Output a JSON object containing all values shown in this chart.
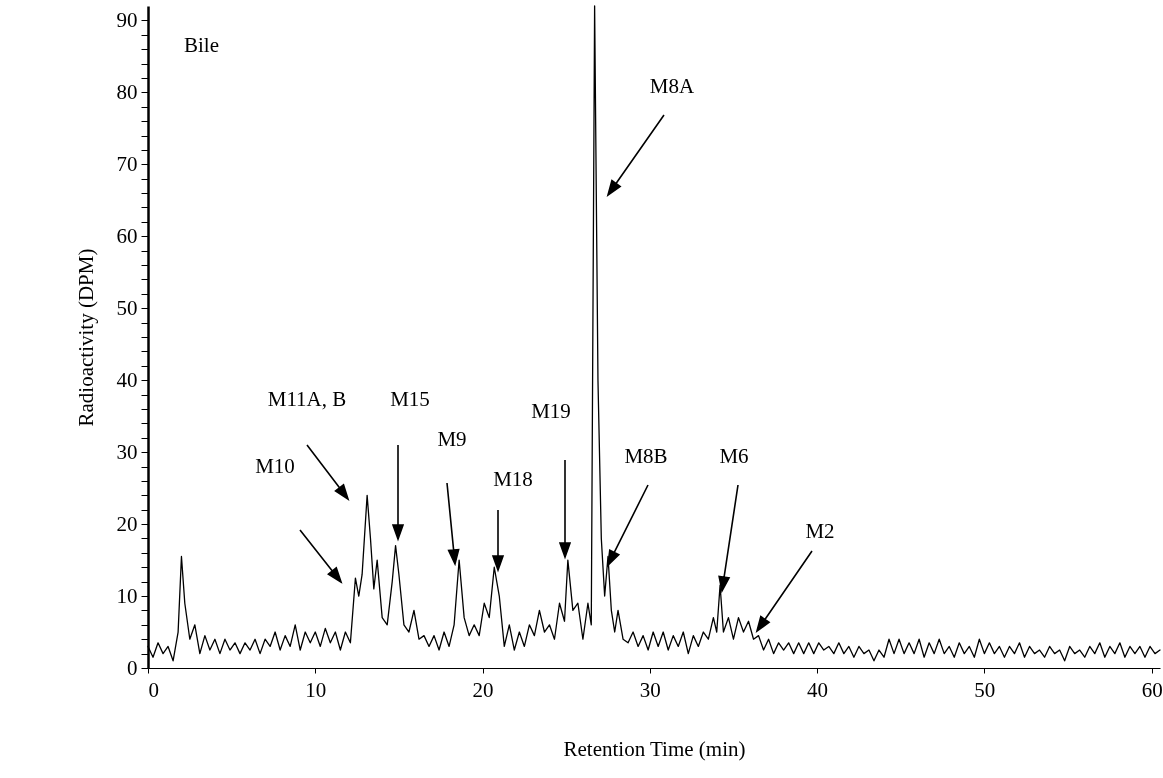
{
  "chart_data": {
    "type": "line",
    "xlabel": "Retention Time (min)",
    "ylabel": "Radioactivity (DPM)",
    "color": "#000000",
    "grid": false,
    "xlim": [
      0,
      60.5
    ],
    "xticks": [
      0,
      10,
      20,
      30,
      40,
      50,
      60
    ],
    "ylim": [
      0,
      92
    ],
    "yticks": [
      0,
      {
        "value": 2,
        "label": null
      },
      {
        "value": 4,
        "label": null
      },
      {
        "value": 6,
        "label": null
      },
      {
        "value": 8,
        "label": null
      },
      10,
      {
        "value": 12,
        "label": null
      },
      {
        "value": 14,
        "label": null
      },
      {
        "value": 16,
        "label": null
      },
      {
        "value": 18,
        "label": null
      },
      20,
      {
        "value": 22,
        "label": null
      },
      {
        "value": 24,
        "label": null
      },
      {
        "value": 26,
        "label": null
      },
      {
        "value": 28,
        "label": null
      },
      30,
      {
        "value": 32,
        "label": null
      },
      {
        "value": 34,
        "label": null
      },
      {
        "value": 36,
        "label": null
      },
      {
        "value": 38,
        "label": null
      },
      40,
      {
        "value": 42,
        "label": null
      },
      {
        "value": 44,
        "label": null
      },
      {
        "value": 46,
        "label": null
      },
      {
        "value": 48,
        "label": null
      },
      50,
      {
        "value": 52,
        "label": null
      },
      {
        "value": 54,
        "label": null
      },
      {
        "value": 56,
        "label": null
      },
      {
        "value": 58,
        "label": null
      },
      60,
      {
        "value": 62,
        "label": null
      },
      {
        "value": 64,
        "label": null
      },
      {
        "value": 66,
        "label": null
      },
      {
        "value": 68,
        "label": null
      },
      70,
      {
        "value": 72,
        "label": null
      },
      {
        "value": 74,
        "label": null
      },
      {
        "value": 76,
        "label": null
      },
      {
        "value": 78,
        "label": null
      },
      80,
      {
        "value": 82,
        "label": null
      },
      {
        "value": 84,
        "label": null
      },
      {
        "value": 86,
        "label": null
      },
      {
        "value": 88,
        "label": null
      },
      90
    ],
    "x": [
      0,
      0.3,
      0.6,
      0.9,
      1.2,
      1.5,
      1.8,
      2.0,
      2.2,
      2.5,
      2.8,
      3.1,
      3.4,
      3.7,
      4.0,
      4.3,
      4.6,
      4.9,
      5.2,
      5.5,
      5.8,
      6.1,
      6.4,
      6.7,
      7.0,
      7.3,
      7.6,
      7.9,
      8.2,
      8.5,
      8.8,
      9.1,
      9.4,
      9.7,
      10.0,
      10.3,
      10.6,
      10.9,
      11.2,
      11.5,
      11.8,
      12.1,
      12.4,
      12.6,
      12.8,
      13.1,
      13.3,
      13.5,
      13.7,
      14.0,
      14.3,
      14.6,
      14.8,
      15.0,
      15.3,
      15.6,
      15.9,
      16.2,
      16.5,
      16.8,
      17.1,
      17.4,
      17.7,
      18.0,
      18.3,
      18.6,
      18.9,
      19.2,
      19.5,
      19.8,
      20.1,
      20.4,
      20.7,
      21.0,
      21.3,
      21.6,
      21.9,
      22.2,
      22.5,
      22.8,
      23.1,
      23.4,
      23.7,
      24.0,
      24.3,
      24.6,
      24.9,
      25.1,
      25.4,
      25.7,
      26.0,
      26.3,
      26.5,
      26.7,
      26.9,
      27.1,
      27.3,
      27.5,
      27.7,
      27.9,
      28.1,
      28.4,
      28.7,
      29.0,
      29.3,
      29.6,
      29.9,
      30.2,
      30.5,
      30.8,
      31.1,
      31.4,
      31.7,
      32.0,
      32.3,
      32.6,
      32.9,
      33.2,
      33.5,
      33.8,
      34.0,
      34.2,
      34.4,
      34.7,
      35.0,
      35.3,
      35.6,
      35.9,
      36.2,
      36.5,
      36.8,
      37.1,
      37.4,
      37.7,
      38.0,
      38.3,
      38.6,
      38.9,
      39.2,
      39.5,
      39.8,
      40.1,
      40.4,
      40.7,
      41.0,
      41.3,
      41.6,
      41.9,
      42.2,
      42.5,
      42.8,
      43.1,
      43.4,
      43.7,
      44.0,
      44.3,
      44.6,
      44.9,
      45.2,
      45.5,
      45.8,
      46.1,
      46.4,
      46.7,
      47.0,
      47.3,
      47.6,
      47.9,
      48.2,
      48.5,
      48.8,
      49.1,
      49.4,
      49.7,
      50.0,
      50.3,
      50.6,
      50.9,
      51.2,
      51.5,
      51.8,
      52.1,
      52.4,
      52.7,
      53.0,
      53.3,
      53.6,
      53.9,
      54.2,
      54.5,
      54.8,
      55.1,
      55.4,
      55.7,
      56.0,
      56.3,
      56.6,
      56.9,
      57.2,
      57.5,
      57.8,
      58.1,
      58.4,
      58.7,
      59.0,
      59.3,
      59.6,
      59.9,
      60.2,
      60.5
    ],
    "values": [
      3,
      1.5,
      3.5,
      2,
      3,
      1,
      5,
      15.5,
      9,
      4,
      6,
      2,
      4.5,
      2.5,
      4,
      2,
      4,
      2.5,
      3.5,
      2,
      3.5,
      2.5,
      4,
      2,
      4,
      3,
      5,
      2.5,
      4.5,
      3,
      6,
      2.5,
      5,
      3.5,
      5,
      3,
      5.5,
      3.5,
      5,
      2.5,
      5,
      3.5,
      12.5,
      10,
      13,
      24,
      18,
      11,
      15,
      7,
      6,
      12,
      17,
      13,
      6,
      5,
      8,
      4,
      4.5,
      3,
      4.5,
      2.5,
      5,
      3,
      6,
      15,
      7,
      4.5,
      6,
      4.5,
      9,
      7,
      14,
      10,
      3,
      6,
      2.5,
      5,
      3,
      6,
      4.5,
      8,
      5,
      6,
      4,
      9,
      6.5,
      15,
      8,
      9,
      4,
      9,
      6,
      92,
      40,
      18,
      10,
      15.5,
      8,
      5,
      8,
      4,
      3.5,
      5,
      3,
      4.5,
      2.5,
      5,
      3,
      5,
      2.5,
      4.5,
      3,
      5,
      2,
      4.5,
      3,
      5,
      4,
      7,
      5,
      11.5,
      5,
      7,
      4,
      7,
      5,
      6.5,
      4,
      4.5,
      2.5,
      4,
      2,
      3.5,
      2.5,
      3.5,
      2,
      3.5,
      2,
      3.5,
      2,
      3.5,
      2.5,
      3,
      2,
      3.5,
      2,
      3,
      1.5,
      3,
      2,
      2.5,
      1,
      2.5,
      1.5,
      4,
      2,
      4,
      2,
      3.5,
      2,
      4,
      1.5,
      3.5,
      2,
      4,
      2,
      3,
      1.5,
      3.5,
      2,
      3,
      1.5,
      4,
      2,
      3.5,
      2,
      3,
      1.5,
      3,
      2,
      3.5,
      1.5,
      3,
      2,
      2.5,
      1.5,
      3,
      2,
      2.5,
      1,
      3,
      2,
      2.5,
      1.5,
      3,
      2,
      3.5,
      1.5,
      3,
      2,
      3.5,
      1.5,
      3,
      2,
      3,
      1.5,
      3,
      2,
      2.5
    ],
    "annotations": [
      "Bile",
      "M10",
      "M11A, B",
      "M15",
      "M9",
      "M18",
      "M19",
      "M8A",
      "M8B",
      "M6",
      "M2"
    ]
  }
}
